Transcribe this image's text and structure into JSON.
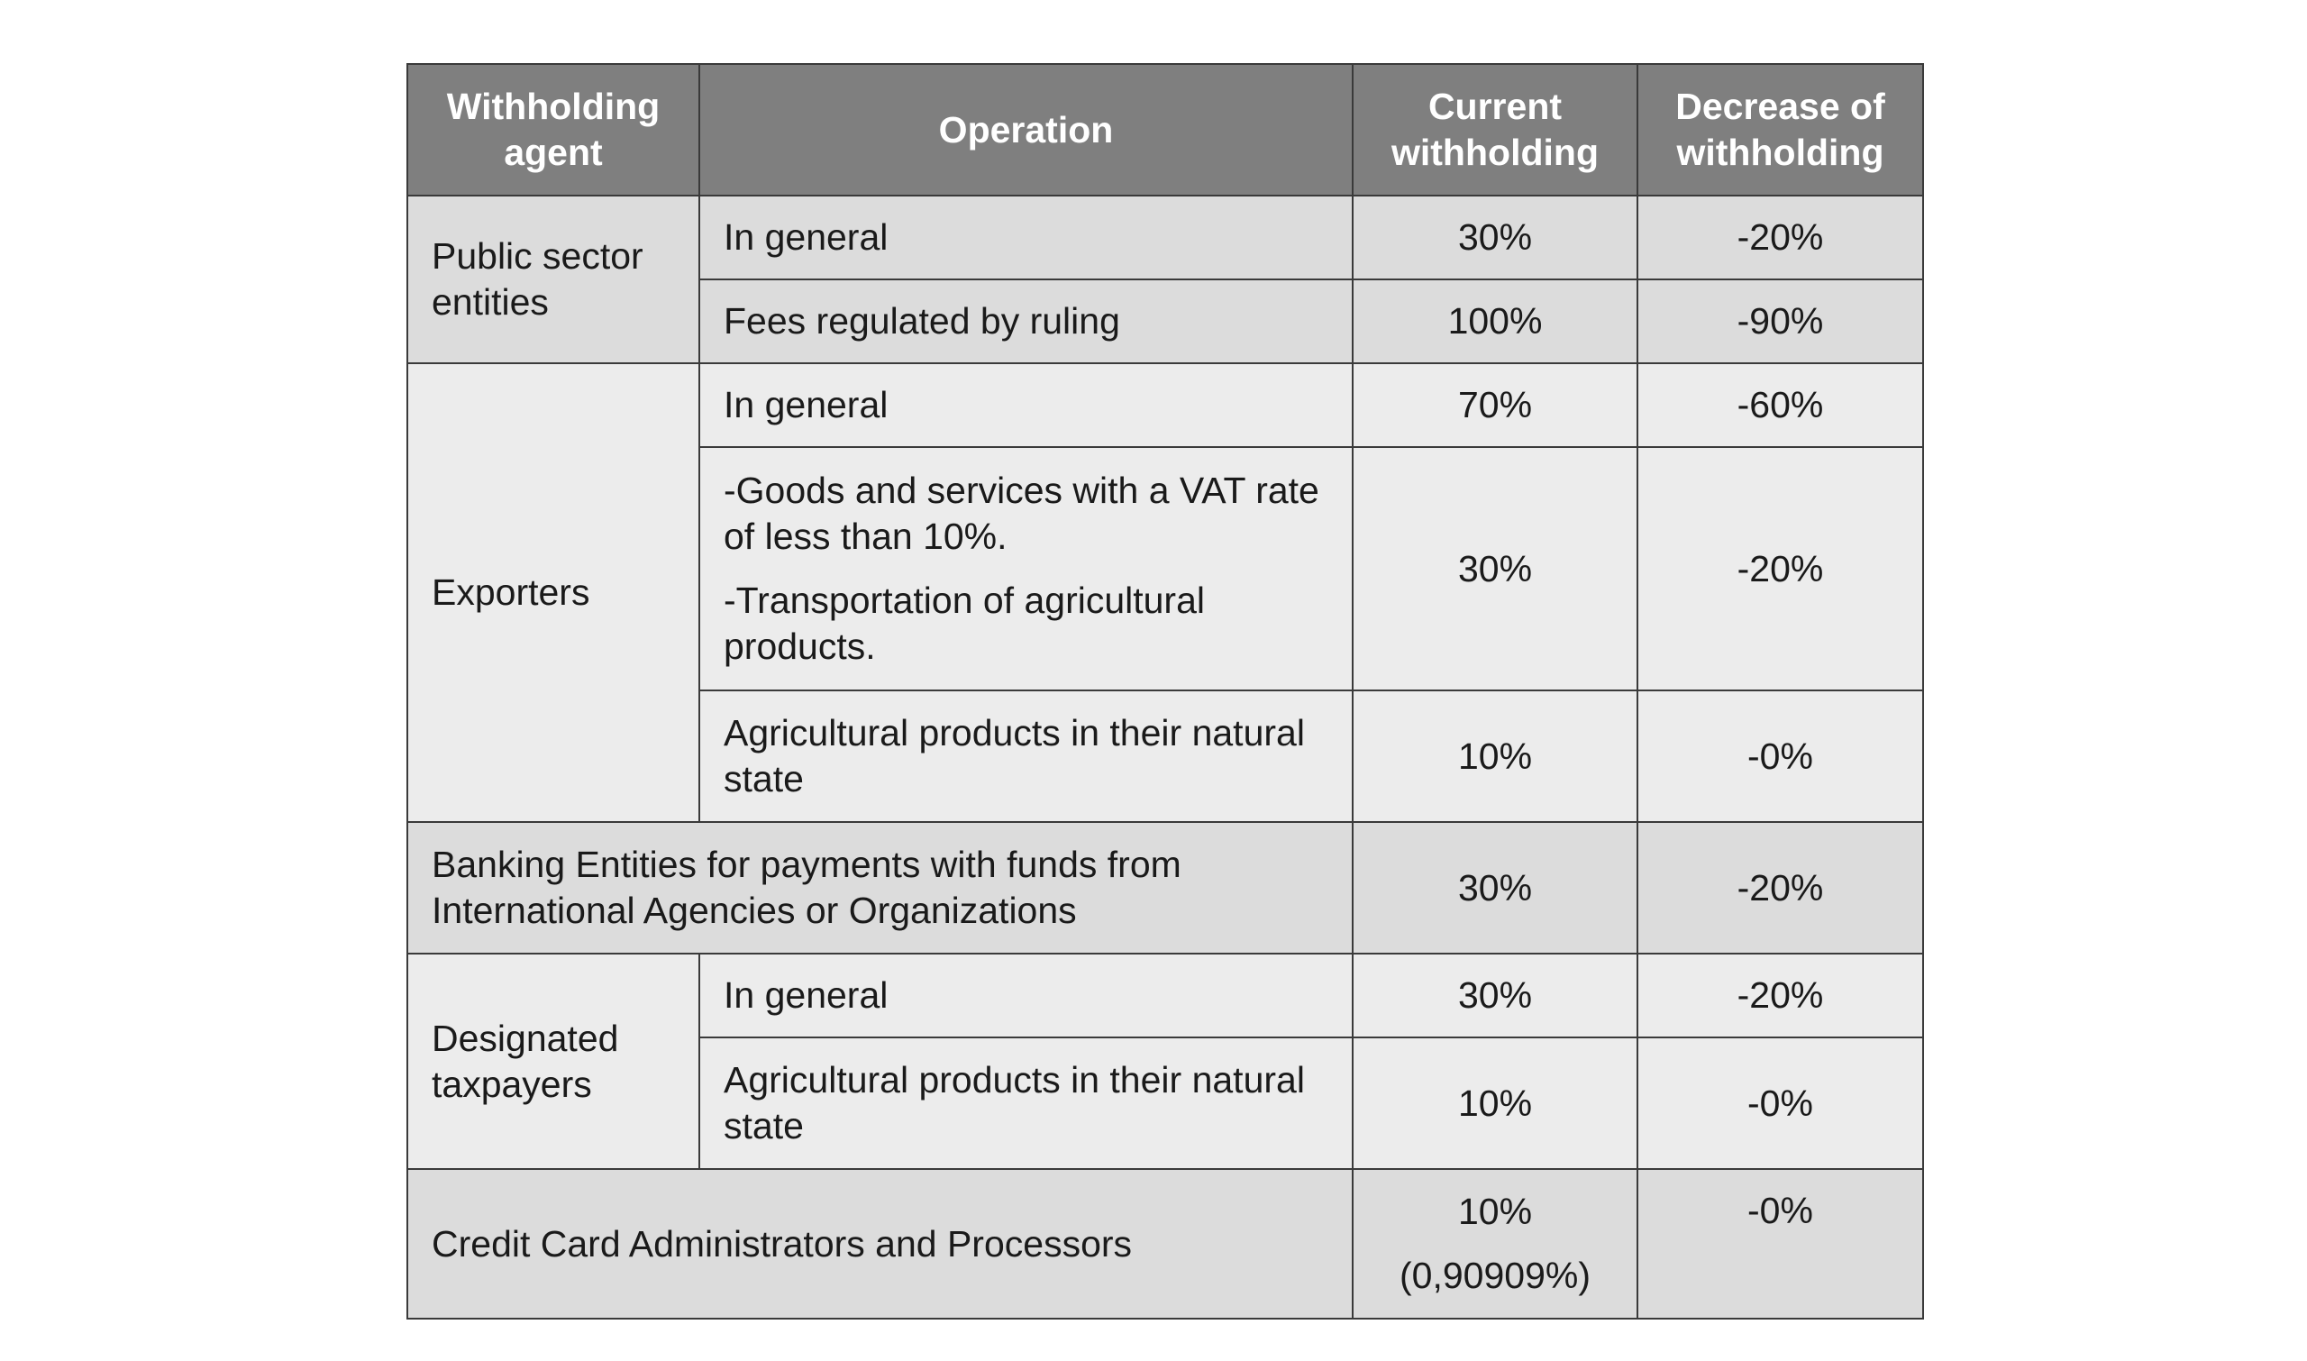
{
  "headers": {
    "agent": "Withholding agent",
    "operation": "Operation",
    "current": "Current withholding",
    "decrease": "Decrease of withholding"
  },
  "rows": {
    "public": {
      "agent": "Public sector entities",
      "items": [
        {
          "operation": "In general",
          "current": "30%",
          "decrease": "-20%"
        },
        {
          "operation": "Fees regulated by ruling",
          "current": "100%",
          "decrease": "-90%"
        }
      ]
    },
    "exporters": {
      "agent": "Exporters",
      "items": [
        {
          "operation": "In general",
          "current": "70%",
          "decrease": "-60%"
        },
        {
          "operation_lines": [
            "-Goods and services with a VAT rate of less than 10%.",
            "-Transportation of agricultural products."
          ],
          "current": "30%",
          "decrease": "-20%"
        },
        {
          "operation": "Agricultural products in their natural state",
          "current": "10%",
          "decrease": "-0%"
        }
      ]
    },
    "banking": {
      "agent": "Banking Entities for payments with funds from International Agencies or Organizations",
      "current": "30%",
      "decrease": "-20%"
    },
    "designated": {
      "agent": "Designated taxpayers",
      "items": [
        {
          "operation": "In general",
          "current": "30%",
          "decrease": "-20%"
        },
        {
          "operation": "Agricultural products in their natural state",
          "current": "10%",
          "decrease": "-0%"
        }
      ]
    },
    "credit": {
      "agent": "Credit Card Administrators and Processors",
      "current": "10%",
      "current_note": "(0,90909%)",
      "decrease": "-0%"
    }
  },
  "colors": {
    "header_bg": "#7f7f7f",
    "header_text": "#ffffff",
    "row_dark": "#dcdcdc",
    "row_light": "#ececec",
    "border": "#3a3a3a"
  }
}
